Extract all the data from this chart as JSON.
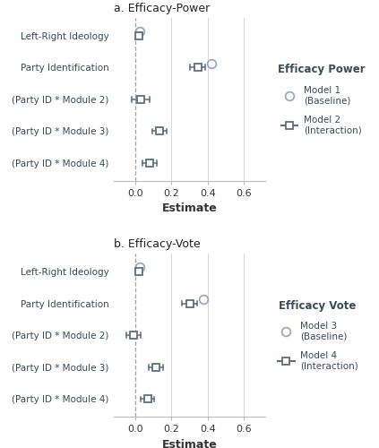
{
  "panel_a": {
    "title": "a. Efficacy-Power",
    "legend_title": "Efficacy Power",
    "legend_model1": "Model 1\n(Baseline)",
    "legend_model2": "Model 2\n(Interaction)",
    "yticks": [
      "Left-Right Ideology",
      "Party Identification",
      "(Party ID * Module 2)",
      "(Party ID * Module 3)",
      "(Party ID * Module 4)"
    ],
    "model1": {
      "estimates": [
        0.022,
        0.42,
        null,
        null,
        null
      ]
    },
    "model2": {
      "estimates": [
        0.018,
        0.345,
        0.03,
        0.135,
        0.078
      ],
      "ci_low": [
        0.012,
        0.3,
        -0.022,
        0.092,
        0.038
      ],
      "ci_high": [
        0.024,
        0.388,
        0.08,
        0.175,
        0.118
      ]
    }
  },
  "panel_b": {
    "title": "b. Efficacy-Vote",
    "legend_title": "Efficacy Vote",
    "legend_model1": "Model 3\n(Baseline)",
    "legend_model2": "Model 4\n(Interaction)",
    "yticks": [
      "Left-Right Ideology",
      "Party Identification",
      "(Party ID * Module 2)",
      "(Party ID * Module 3)",
      "(Party ID * Module 4)"
    ],
    "model1": {
      "estimates": [
        0.025,
        0.375,
        null,
        null,
        null
      ]
    },
    "model2": {
      "estimates": [
        0.018,
        0.3,
        -0.01,
        0.115,
        0.068
      ],
      "ci_low": [
        0.01,
        0.26,
        -0.05,
        0.075,
        0.03
      ],
      "ci_high": [
        0.026,
        0.34,
        0.03,
        0.155,
        0.106
      ]
    }
  },
  "xlim": [
    -0.12,
    0.72
  ],
  "xticks": [
    0.0,
    0.2,
    0.4,
    0.6
  ],
  "xtick_labels": [
    "0.0",
    "0.2",
    "0.4",
    "0.6"
  ],
  "xlabel": "Estimate",
  "color_model1": "#9aabbf",
  "color_model2": "#5a6e82",
  "bg_color": "#ffffff",
  "vline_color": "#cccccc",
  "vline_zero_color": "#999999"
}
